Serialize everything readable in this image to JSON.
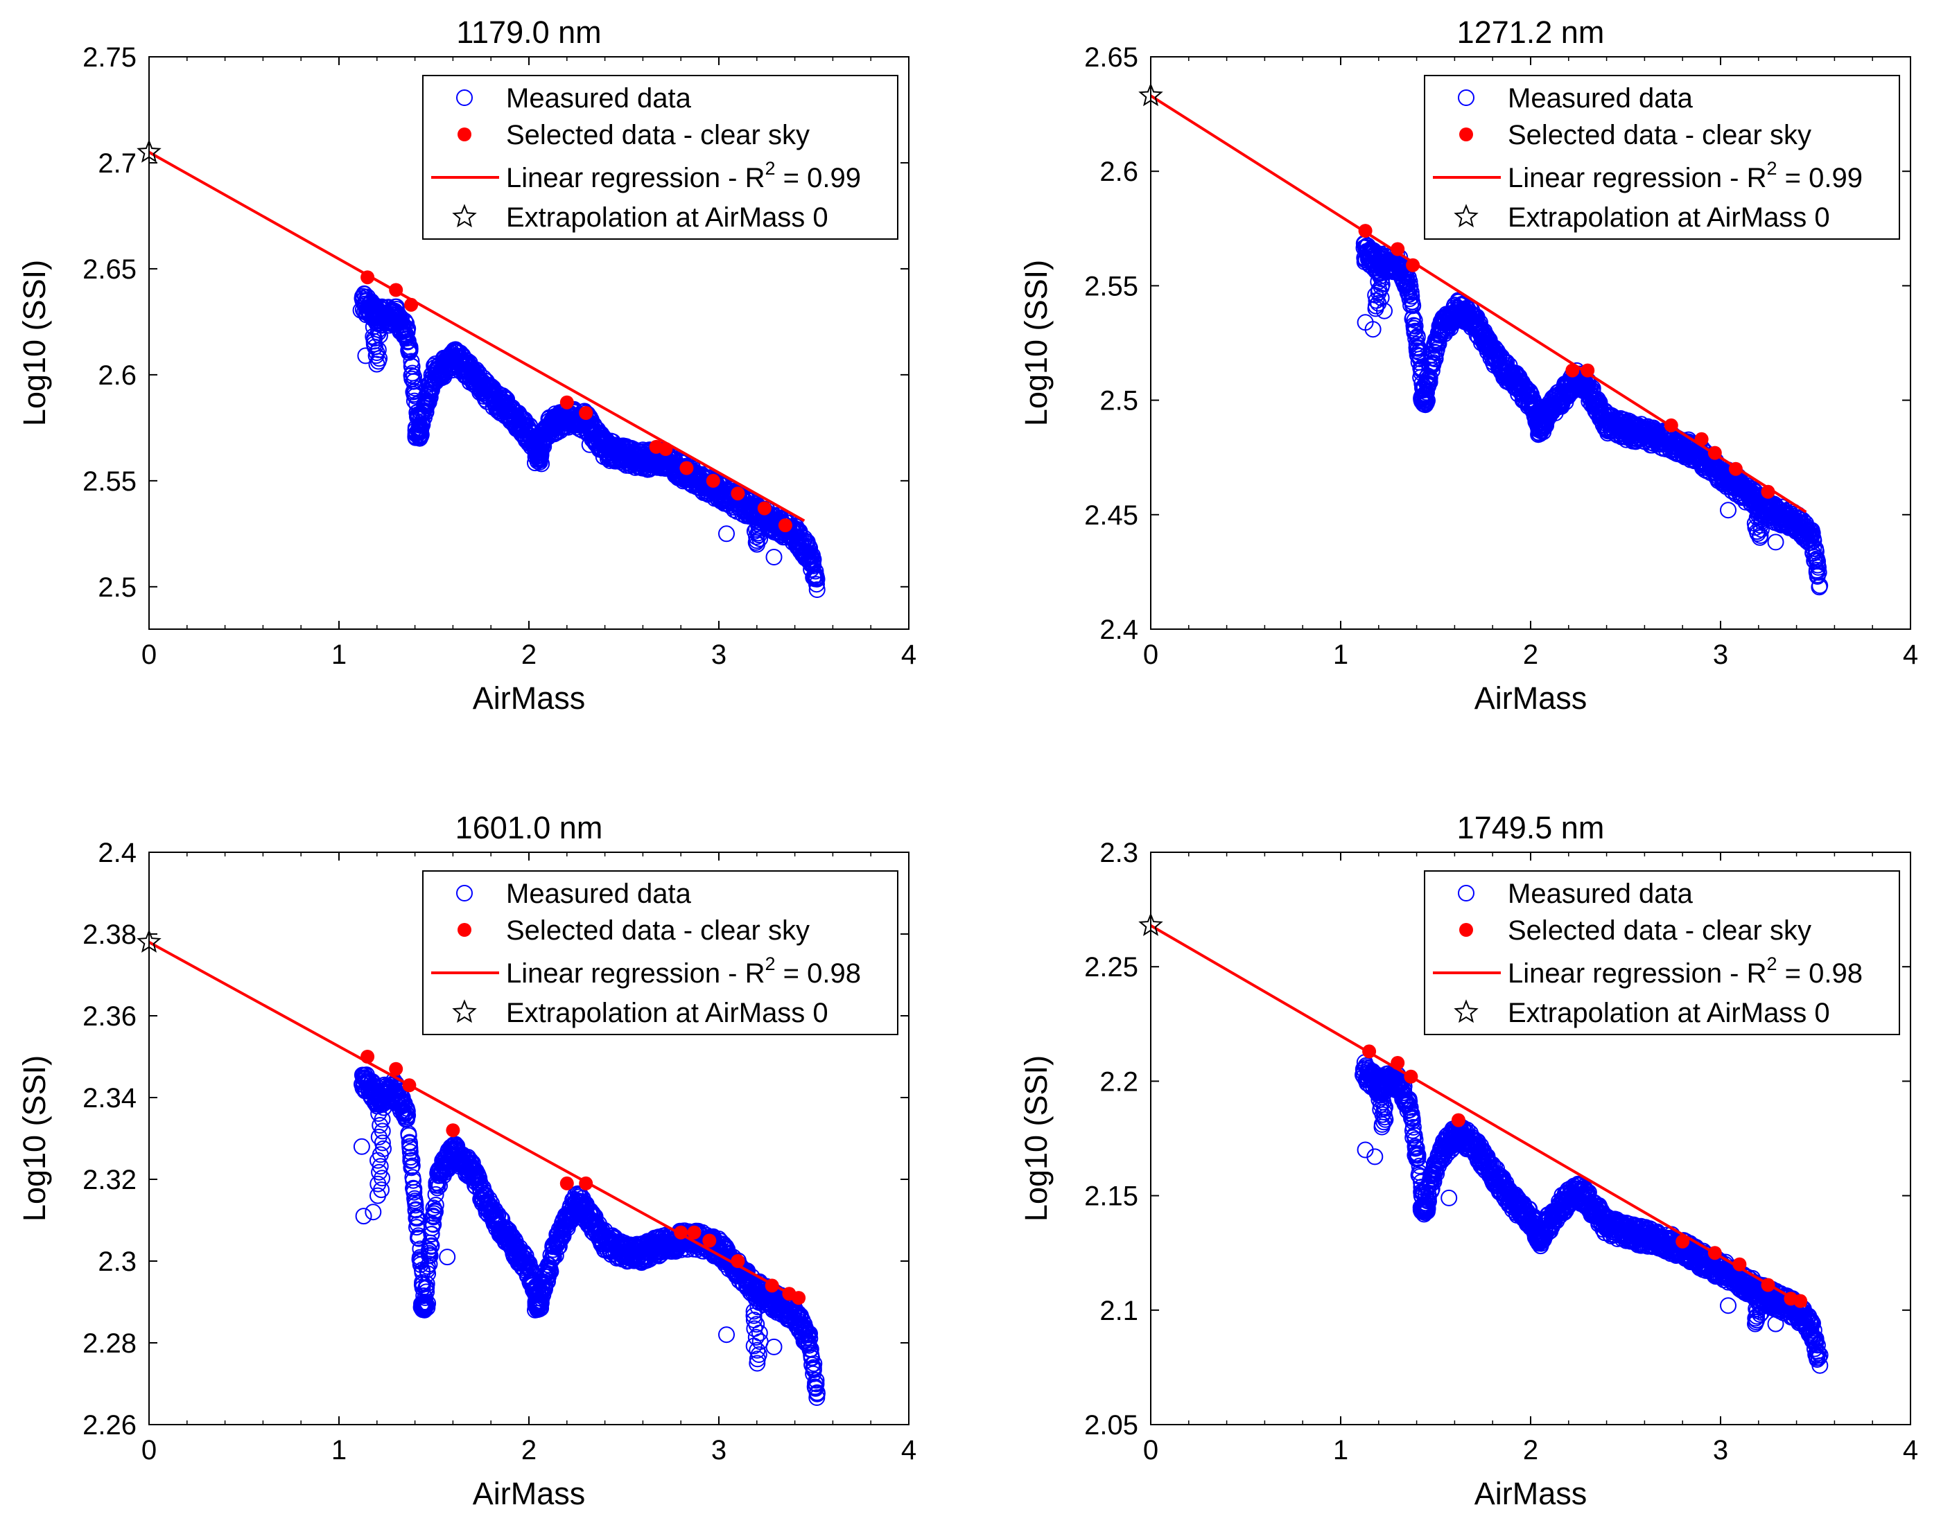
{
  "colors": {
    "measured": "#0000ff",
    "selected": "#ff0000",
    "regression": "#ff0000",
    "star": "#000000",
    "axes": "#000000"
  },
  "legend": {
    "measured": "Measured data",
    "selected": "Selected data - clear sky",
    "regression_prefix": "Linear regression - R",
    "regression_sup": "2",
    "extrapolation": "Extrapolation at AirMass 0"
  },
  "chart_data": [
    {
      "type": "scatter",
      "title": "1179.0 nm",
      "xlabel": "AirMass",
      "ylabel": "Log10 (SSI)",
      "xlim": [
        0,
        4
      ],
      "ylim": [
        2.48,
        2.75
      ],
      "xticks": [
        0,
        1,
        2,
        3,
        4
      ],
      "yticks": [
        2.5,
        2.55,
        2.6,
        2.65,
        2.7,
        2.75
      ],
      "xtick_labels": [
        "0",
        "1",
        "2",
        "3",
        "4"
      ],
      "ytick_labels": [
        "2.5",
        "2.55",
        "2.6",
        "2.65",
        "2.7",
        "2.75"
      ],
      "r2_text": " = 0.99",
      "intercept": 2.705,
      "slope": -0.0504,
      "measured_trend": [
        [
          1.12,
          2.635
        ],
        [
          1.2,
          2.628
        ],
        [
          1.3,
          2.628
        ],
        [
          1.36,
          2.62
        ],
        [
          1.42,
          2.575
        ],
        [
          1.5,
          2.6
        ],
        [
          1.62,
          2.608
        ],
        [
          1.7,
          2.6
        ],
        [
          1.8,
          2.59
        ],
        [
          1.9,
          2.583
        ],
        [
          2.0,
          2.572
        ],
        [
          2.05,
          2.565
        ],
        [
          2.1,
          2.575
        ],
        [
          2.2,
          2.58
        ],
        [
          2.3,
          2.578
        ],
        [
          2.4,
          2.565
        ],
        [
          2.5,
          2.562
        ],
        [
          2.6,
          2.56
        ],
        [
          2.7,
          2.56
        ],
        [
          2.8,
          2.555
        ],
        [
          2.9,
          2.55
        ],
        [
          3.0,
          2.545
        ],
        [
          3.1,
          2.54
        ],
        [
          3.2,
          2.535
        ],
        [
          3.3,
          2.53
        ],
        [
          3.4,
          2.525
        ],
        [
          3.48,
          2.515
        ],
        [
          3.52,
          2.5
        ]
      ],
      "measured_dips": [
        [
          1.2,
          2.605
        ],
        [
          1.42,
          2.57
        ],
        [
          2.05,
          2.558
        ],
        [
          3.2,
          2.52
        ]
      ],
      "measured_outliers": [
        [
          1.14,
          2.609
        ],
        [
          2.32,
          2.567
        ],
        [
          3.04,
          2.525
        ],
        [
          3.29,
          2.514
        ],
        [
          1.18,
          2.618
        ]
      ],
      "selected": [
        [
          1.15,
          2.646
        ],
        [
          1.3,
          2.64
        ],
        [
          1.38,
          2.633
        ],
        [
          2.2,
          2.587
        ],
        [
          2.3,
          2.582
        ],
        [
          2.67,
          2.566
        ],
        [
          2.72,
          2.565
        ],
        [
          2.83,
          2.556
        ],
        [
          2.97,
          2.55
        ],
        [
          3.1,
          2.544
        ],
        [
          3.24,
          2.537
        ],
        [
          3.35,
          2.529
        ]
      ],
      "extrapolation": [
        0,
        2.705
      ]
    },
    {
      "type": "scatter",
      "title": "1271.2 nm",
      "xlabel": "AirMass",
      "ylabel": "Log10 (SSI)",
      "xlim": [
        0,
        4
      ],
      "ylim": [
        2.4,
        2.65
      ],
      "xticks": [
        0,
        1,
        2,
        3,
        4
      ],
      "yticks": [
        2.4,
        2.45,
        2.5,
        2.55,
        2.6,
        2.65
      ],
      "xtick_labels": [
        "0",
        "1",
        "2",
        "3",
        "4"
      ],
      "ytick_labels": [
        "2.4",
        "2.45",
        "2.5",
        "2.55",
        "2.6",
        "2.65"
      ],
      "r2_text": " = 0.99",
      "intercept": 2.633,
      "slope": -0.0527,
      "measured_trend": [
        [
          1.12,
          2.565
        ],
        [
          1.2,
          2.56
        ],
        [
          1.3,
          2.56
        ],
        [
          1.36,
          2.55
        ],
        [
          1.44,
          2.502
        ],
        [
          1.52,
          2.53
        ],
        [
          1.62,
          2.54
        ],
        [
          1.7,
          2.535
        ],
        [
          1.8,
          2.52
        ],
        [
          1.9,
          2.51
        ],
        [
          2.0,
          2.5
        ],
        [
          2.05,
          2.49
        ],
        [
          2.15,
          2.5
        ],
        [
          2.25,
          2.51
        ],
        [
          2.3,
          2.505
        ],
        [
          2.4,
          2.49
        ],
        [
          2.5,
          2.487
        ],
        [
          2.6,
          2.485
        ],
        [
          2.7,
          2.483
        ],
        [
          2.8,
          2.48
        ],
        [
          2.9,
          2.475
        ],
        [
          3.0,
          2.468
        ],
        [
          3.1,
          2.462
        ],
        [
          3.2,
          2.455
        ],
        [
          3.3,
          2.45
        ],
        [
          3.4,
          2.447
        ],
        [
          3.48,
          2.44
        ],
        [
          3.52,
          2.422
        ]
      ],
      "measured_dips": [
        [
          1.2,
          2.54
        ],
        [
          1.44,
          2.498
        ],
        [
          2.05,
          2.485
        ],
        [
          3.2,
          2.44
        ]
      ],
      "measured_outliers": [
        [
          1.13,
          2.534
        ],
        [
          1.17,
          2.531
        ],
        [
          1.23,
          2.539
        ],
        [
          3.04,
          2.452
        ],
        [
          3.29,
          2.438
        ]
      ],
      "selected": [
        [
          1.13,
          2.574
        ],
        [
          1.3,
          2.566
        ],
        [
          1.38,
          2.559
        ],
        [
          2.22,
          2.513
        ],
        [
          2.3,
          2.513
        ],
        [
          2.74,
          2.489
        ],
        [
          2.9,
          2.483
        ],
        [
          2.97,
          2.477
        ],
        [
          3.08,
          2.47
        ],
        [
          3.25,
          2.46
        ]
      ],
      "extrapolation": [
        0,
        2.633
      ]
    },
    {
      "type": "scatter",
      "title": "1601.0 nm",
      "xlabel": "AirMass",
      "ylabel": "Log10 (SSI)",
      "xlim": [
        0,
        4
      ],
      "ylim": [
        2.26,
        2.4
      ],
      "xticks": [
        0,
        1,
        2,
        3,
        4
      ],
      "yticks": [
        2.26,
        2.28,
        2.3,
        2.32,
        2.34,
        2.36,
        2.38,
        2.4
      ],
      "xtick_labels": [
        "0",
        "1",
        "2",
        "3",
        "4"
      ],
      "ytick_labels": [
        "2.26",
        "2.28",
        "2.3",
        "2.32",
        "2.34",
        "2.36",
        "2.38",
        "2.4"
      ],
      "r2_text": " = 0.98",
      "intercept": 2.378,
      "slope": -0.0255,
      "measured_trend": [
        [
          1.12,
          2.345
        ],
        [
          1.2,
          2.34
        ],
        [
          1.3,
          2.342
        ],
        [
          1.36,
          2.335
        ],
        [
          1.45,
          2.29
        ],
        [
          1.52,
          2.32
        ],
        [
          1.6,
          2.327
        ],
        [
          1.7,
          2.322
        ],
        [
          1.8,
          2.312
        ],
        [
          1.9,
          2.305
        ],
        [
          2.0,
          2.298
        ],
        [
          2.05,
          2.29
        ],
        [
          2.15,
          2.305
        ],
        [
          2.25,
          2.315
        ],
        [
          2.3,
          2.312
        ],
        [
          2.4,
          2.305
        ],
        [
          2.5,
          2.302
        ],
        [
          2.6,
          2.302
        ],
        [
          2.7,
          2.304
        ],
        [
          2.8,
          2.305
        ],
        [
          2.9,
          2.305
        ],
        [
          3.0,
          2.303
        ],
        [
          3.1,
          2.298
        ],
        [
          3.2,
          2.293
        ],
        [
          3.3,
          2.29
        ],
        [
          3.4,
          2.287
        ],
        [
          3.48,
          2.28
        ],
        [
          3.52,
          2.267
        ]
      ],
      "measured_dips": [
        [
          1.22,
          2.316
        ],
        [
          1.45,
          2.288
        ],
        [
          2.05,
          2.288
        ],
        [
          3.2,
          2.275
        ]
      ],
      "measured_outliers": [
        [
          1.13,
          2.311
        ],
        [
          1.18,
          2.312
        ],
        [
          1.57,
          2.301
        ],
        [
          3.04,
          2.282
        ],
        [
          3.29,
          2.279
        ],
        [
          1.12,
          2.328
        ]
      ],
      "selected": [
        [
          1.15,
          2.35
        ],
        [
          1.3,
          2.347
        ],
        [
          1.37,
          2.343
        ],
        [
          1.6,
          2.332
        ],
        [
          2.2,
          2.319
        ],
        [
          2.3,
          2.319
        ],
        [
          2.8,
          2.307
        ],
        [
          2.87,
          2.307
        ],
        [
          2.95,
          2.305
        ],
        [
          3.1,
          2.3
        ],
        [
          3.28,
          2.294
        ],
        [
          3.37,
          2.292
        ],
        [
          3.42,
          2.291
        ]
      ],
      "extrapolation": [
        0,
        2.378
      ]
    },
    {
      "type": "scatter",
      "title": "1749.5 nm",
      "xlabel": "AirMass",
      "ylabel": "Log10 (SSI)",
      "xlim": [
        0,
        4
      ],
      "ylim": [
        2.05,
        2.3
      ],
      "xticks": [
        0,
        1,
        2,
        3,
        4
      ],
      "yticks": [
        2.05,
        2.1,
        2.15,
        2.2,
        2.25,
        2.3
      ],
      "xtick_labels": [
        "0",
        "1",
        "2",
        "3",
        "4"
      ],
      "ytick_labels": [
        "2.05",
        "2.1",
        "2.15",
        "2.2",
        "2.25",
        "2.3"
      ],
      "r2_text": " = 0.98",
      "intercept": 2.268,
      "slope": -0.0482,
      "measured_trend": [
        [
          1.12,
          2.205
        ],
        [
          1.2,
          2.198
        ],
        [
          1.3,
          2.2
        ],
        [
          1.36,
          2.19
        ],
        [
          1.44,
          2.145
        ],
        [
          1.52,
          2.168
        ],
        [
          1.62,
          2.178
        ],
        [
          1.7,
          2.172
        ],
        [
          1.8,
          2.16
        ],
        [
          1.9,
          2.148
        ],
        [
          2.0,
          2.14
        ],
        [
          2.05,
          2.132
        ],
        [
          2.15,
          2.145
        ],
        [
          2.25,
          2.152
        ],
        [
          2.3,
          2.148
        ],
        [
          2.4,
          2.137
        ],
        [
          2.5,
          2.134
        ],
        [
          2.6,
          2.132
        ],
        [
          2.7,
          2.13
        ],
        [
          2.8,
          2.127
        ],
        [
          2.9,
          2.122
        ],
        [
          3.0,
          2.118
        ],
        [
          3.1,
          2.113
        ],
        [
          3.2,
          2.108
        ],
        [
          3.3,
          2.104
        ],
        [
          3.4,
          2.1
        ],
        [
          3.48,
          2.092
        ],
        [
          3.52,
          2.078
        ]
      ],
      "measured_dips": [
        [
          1.22,
          2.18
        ],
        [
          1.44,
          2.143
        ],
        [
          2.05,
          2.13
        ],
        [
          3.2,
          2.094
        ]
      ],
      "measured_outliers": [
        [
          1.13,
          2.17
        ],
        [
          1.18,
          2.167
        ],
        [
          1.23,
          2.188
        ],
        [
          1.57,
          2.149
        ],
        [
          3.04,
          2.102
        ],
        [
          3.29,
          2.094
        ]
      ],
      "selected": [
        [
          1.15,
          2.213
        ],
        [
          1.3,
          2.208
        ],
        [
          1.37,
          2.202
        ],
        [
          1.62,
          2.183
        ],
        [
          2.8,
          2.13
        ],
        [
          2.97,
          2.125
        ],
        [
          3.1,
          2.12
        ],
        [
          3.25,
          2.111
        ],
        [
          3.37,
          2.105
        ],
        [
          3.42,
          2.104
        ]
      ],
      "extrapolation": [
        0,
        2.268
      ]
    }
  ]
}
